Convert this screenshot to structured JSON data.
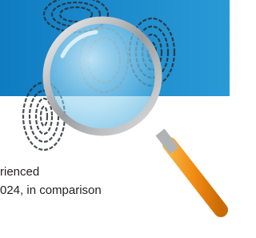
{
  "text": {
    "lines": [
      "rienced",
      "024, in comparison"
    ]
  }
}
